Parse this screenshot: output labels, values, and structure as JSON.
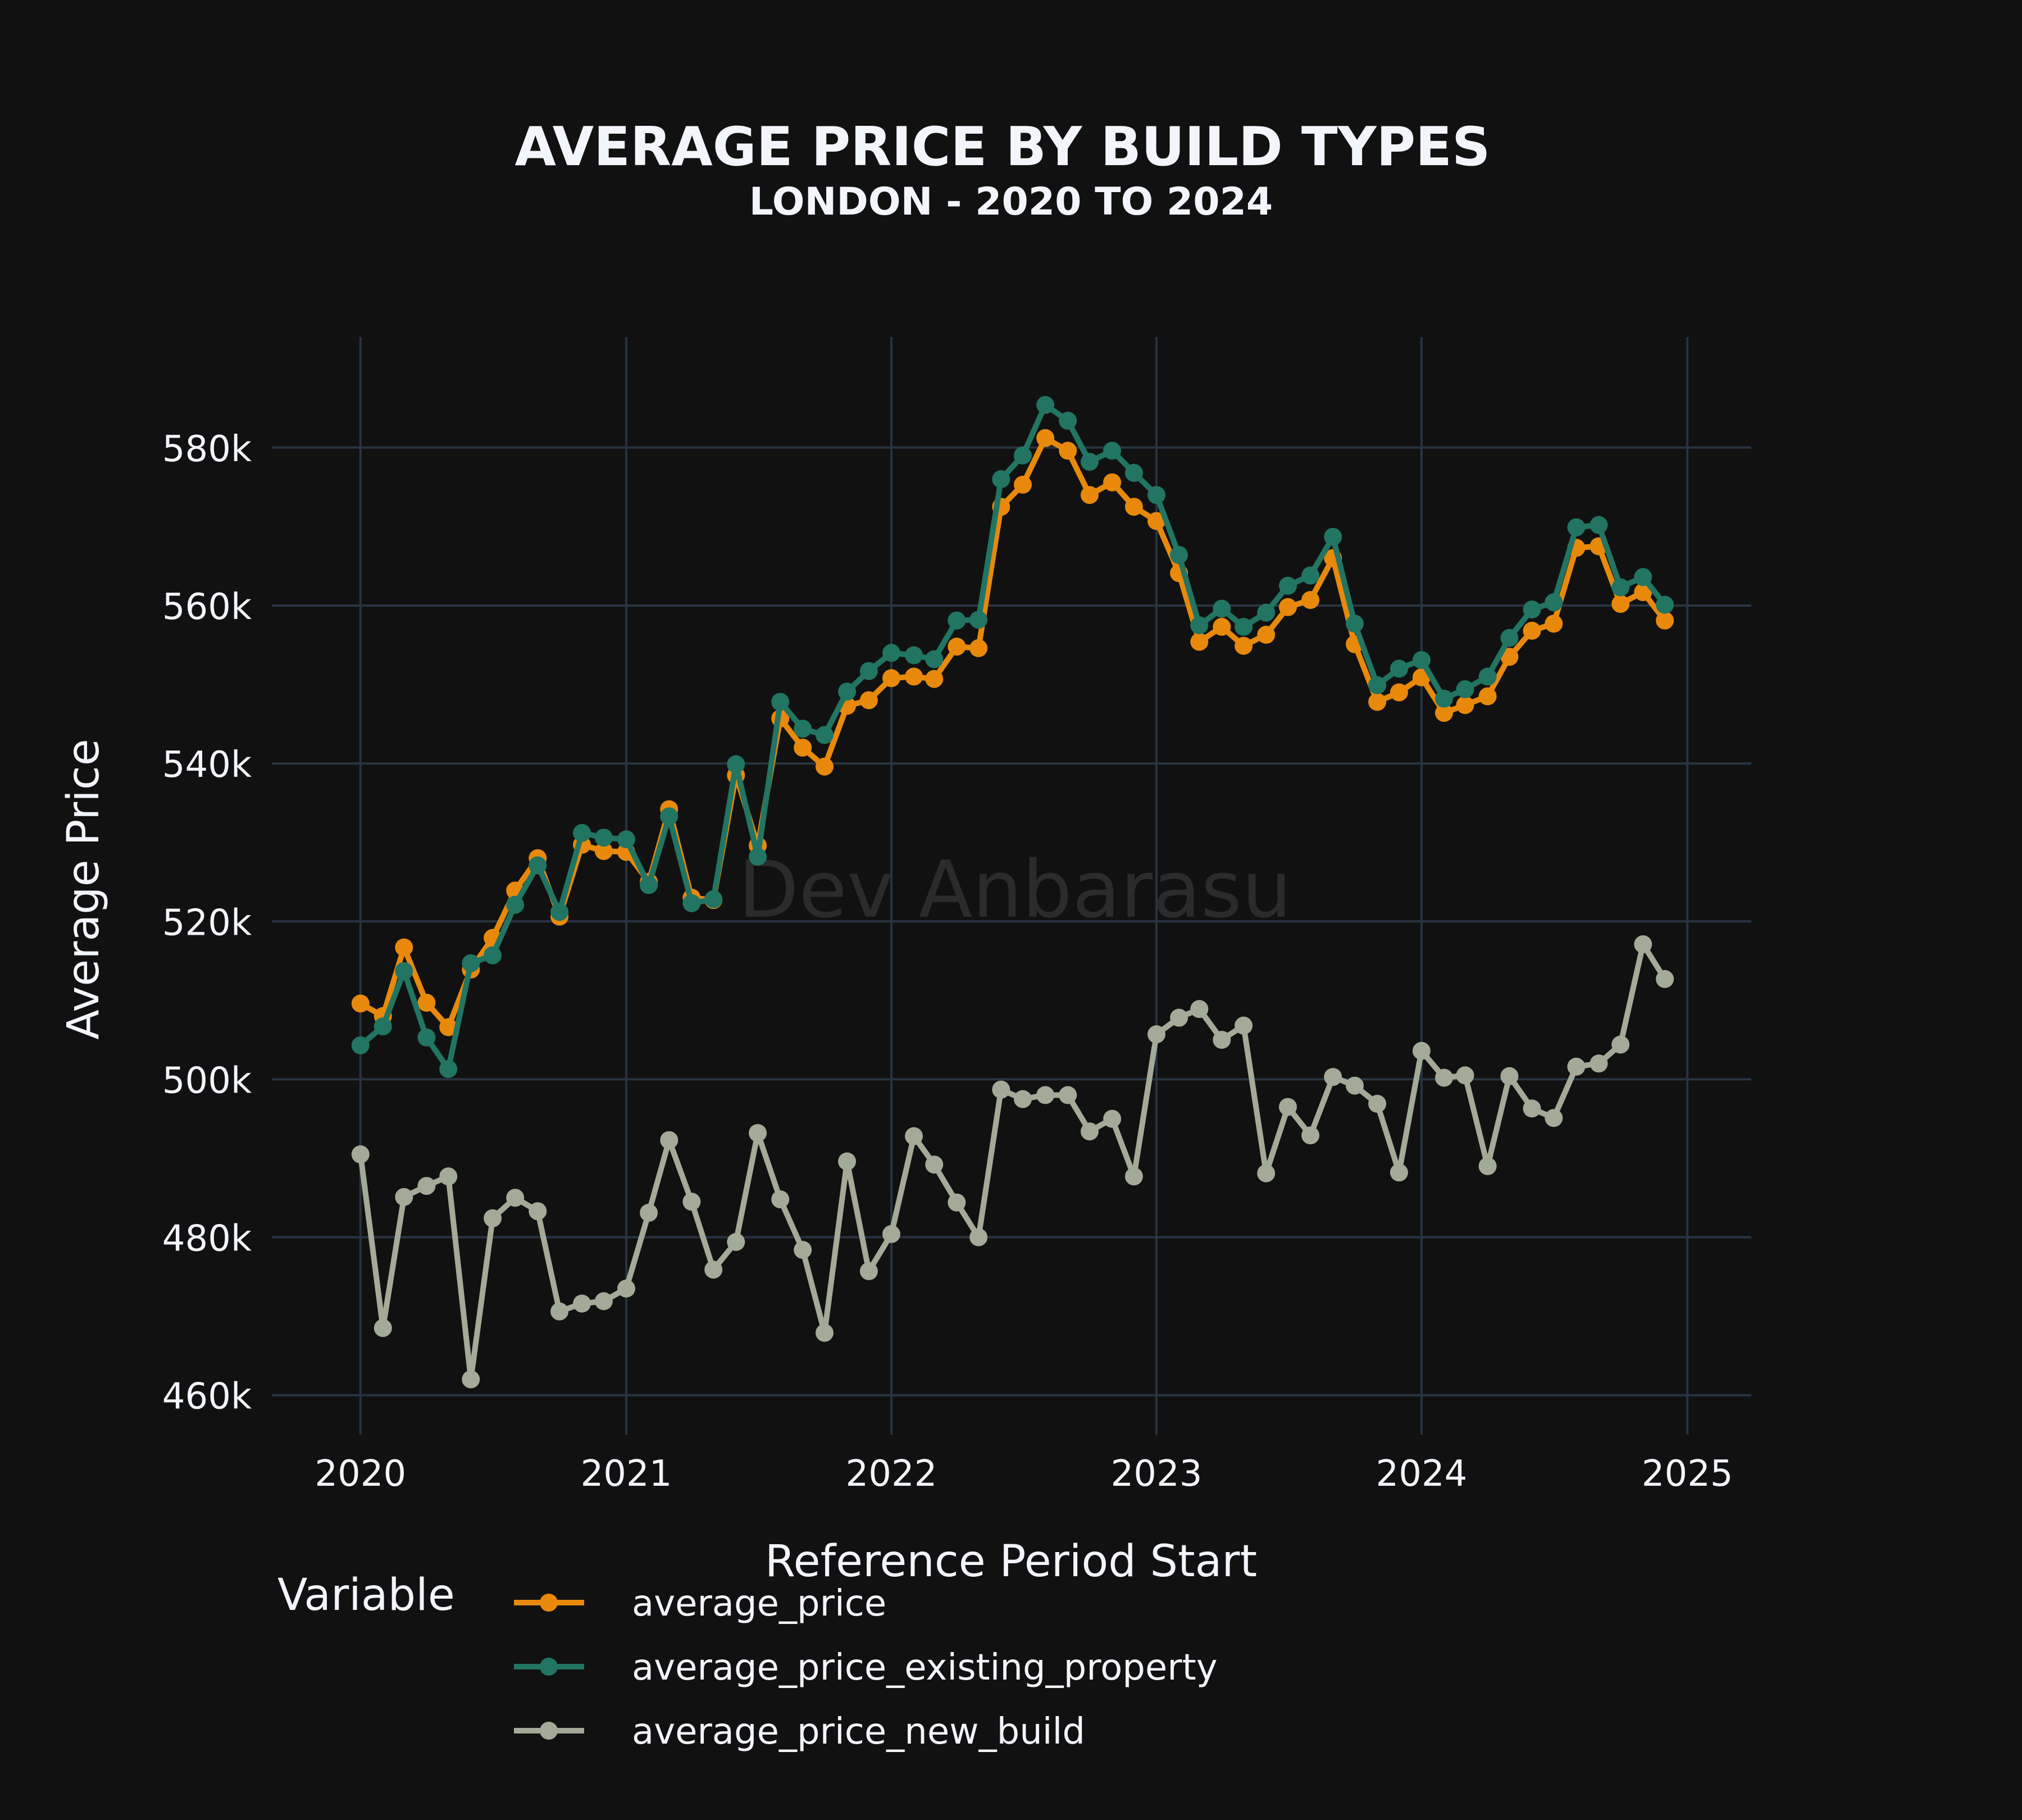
{
  "chart_data": {
    "type": "line",
    "title": "AVERAGE PRICE BY BUILD TYPES",
    "subtitle": "LONDON - 2020 TO 2024",
    "xlabel": "Reference Period Start",
    "ylabel": "Average Price",
    "watermark": "Dev Anbarasu",
    "xlim": [
      "2019-09-01",
      "2025-03-30"
    ],
    "ylim": [
      455000,
      594000
    ],
    "x_ticks": [
      "2020",
      "2021",
      "2022",
      "2023",
      "2024",
      "2025"
    ],
    "y_ticks": [
      460000,
      480000,
      500000,
      520000,
      540000,
      560000,
      580000
    ],
    "y_tick_labels": [
      "460k",
      "480k",
      "500k",
      "520k",
      "540k",
      "560k",
      "580k"
    ],
    "grid": true,
    "legend": {
      "title": "Variable",
      "placement": "bottom"
    },
    "x": [
      "2020-01",
      "2020-02",
      "2020-03",
      "2020-04",
      "2020-05",
      "2020-06",
      "2020-07",
      "2020-08",
      "2020-09",
      "2020-10",
      "2020-11",
      "2020-12",
      "2021-01",
      "2021-02",
      "2021-03",
      "2021-04",
      "2021-05",
      "2021-06",
      "2021-07",
      "2021-08",
      "2021-09",
      "2021-10",
      "2021-11",
      "2021-12",
      "2022-01",
      "2022-02",
      "2022-03",
      "2022-04",
      "2022-05",
      "2022-06",
      "2022-07",
      "2022-08",
      "2022-09",
      "2022-10",
      "2022-11",
      "2022-12",
      "2023-01",
      "2023-02",
      "2023-03",
      "2023-04",
      "2023-05",
      "2023-06",
      "2023-07",
      "2023-08",
      "2023-09",
      "2023-10",
      "2023-11",
      "2023-12",
      "2024-01",
      "2024-02",
      "2024-03",
      "2024-04",
      "2024-05",
      "2024-06",
      "2024-07",
      "2024-08",
      "2024-09",
      "2024-10",
      "2024-11",
      "2024-12"
    ],
    "series": [
      {
        "name": "average_price",
        "color": "#e8890c",
        "values": [
          509600,
          508000,
          516700,
          509700,
          506600,
          513900,
          517900,
          523900,
          528000,
          520600,
          529700,
          528900,
          528800,
          525000,
          534200,
          523000,
          522700,
          538500,
          529600,
          545700,
          542000,
          539600,
          547300,
          548000,
          550800,
          551000,
          550700,
          554800,
          554600,
          572500,
          575300,
          581200,
          579600,
          574000,
          575600,
          572500,
          570700,
          564100,
          555400,
          557300,
          554900,
          556300,
          559800,
          560700,
          566000,
          555100,
          547800,
          549000,
          550900,
          546400,
          547400,
          548500,
          553500,
          556800,
          557700,
          567300,
          567500,
          560200,
          561700,
          558100
        ]
      },
      {
        "name": "average_price_existing_property",
        "color": "#217562",
        "values": [
          504300,
          506700,
          513700,
          505300,
          501300,
          514700,
          515700,
          522100,
          527100,
          521200,
          531200,
          530600,
          530400,
          524600,
          533300,
          522300,
          522800,
          539900,
          528200,
          547800,
          544400,
          543600,
          549100,
          551700,
          554000,
          553700,
          553200,
          558100,
          558200,
          576000,
          579000,
          585400,
          583400,
          578200,
          579600,
          576800,
          574000,
          566400,
          557500,
          559600,
          557300,
          559100,
          562500,
          563800,
          568700,
          557700,
          549900,
          552000,
          553100,
          548200,
          549400,
          551000,
          555900,
          559500,
          560400,
          569900,
          570200,
          562300,
          563600,
          560100
        ]
      },
      {
        "name": "average_price_new_build",
        "color": "#a3aa97",
        "values": [
          490500,
          468500,
          485100,
          486500,
          487700,
          462000,
          482400,
          485000,
          483300,
          470600,
          471600,
          471900,
          473500,
          483100,
          492300,
          484500,
          475900,
          479400,
          493200,
          484800,
          478400,
          467900,
          489600,
          475700,
          480400,
          492800,
          489200,
          484400,
          480000,
          498700,
          497500,
          498000,
          498000,
          493400,
          495000,
          487700,
          505700,
          507800,
          508900,
          505000,
          506800,
          488100,
          496500,
          492900,
          500300,
          499200,
          496900,
          488200,
          503600,
          500200,
          500500,
          489000,
          500400,
          496300,
          495100,
          501600,
          502000,
          504400,
          517100,
          512700
        ]
      }
    ]
  }
}
